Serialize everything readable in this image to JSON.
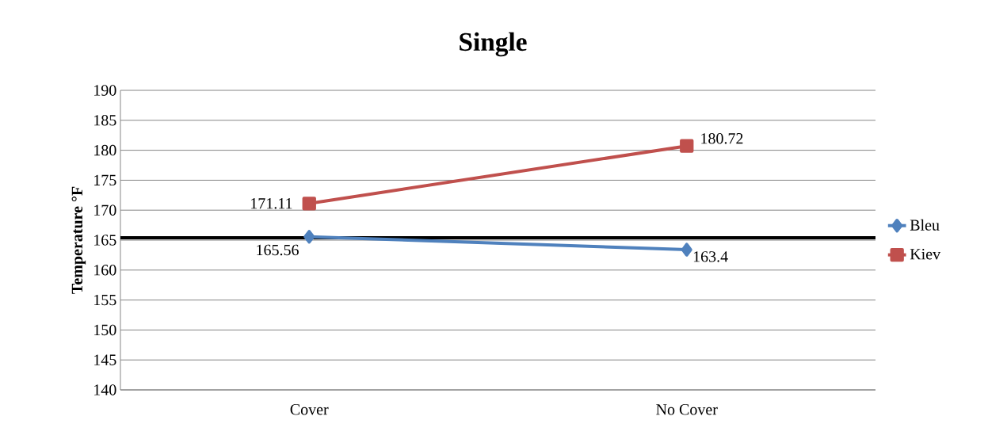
{
  "chart_data": {
    "type": "line",
    "title": "Single",
    "ylabel": "Temperature °F",
    "categories": [
      "Cover",
      "No Cover"
    ],
    "series": [
      {
        "name": "Bleu",
        "color": "#4f81bd",
        "marker": "diamond",
        "values": [
          165.56,
          163.4
        ],
        "value_labels": [
          "165.56",
          "163.4"
        ]
      },
      {
        "name": "Kiev",
        "color": "#c0504d",
        "marker": "square",
        "values": [
          171.11,
          180.72
        ],
        "value_labels": [
          "171.11",
          "180.72"
        ]
      }
    ],
    "ylim": [
      140,
      190
    ],
    "yticks": [
      140,
      145,
      150,
      155,
      160,
      165,
      170,
      175,
      180,
      185,
      190
    ],
    "grid": "y",
    "legend": "right",
    "line_style": "solid",
    "ref_lines": [
      {
        "axis": "y",
        "value": 165.4,
        "color": "#000000"
      }
    ]
  }
}
